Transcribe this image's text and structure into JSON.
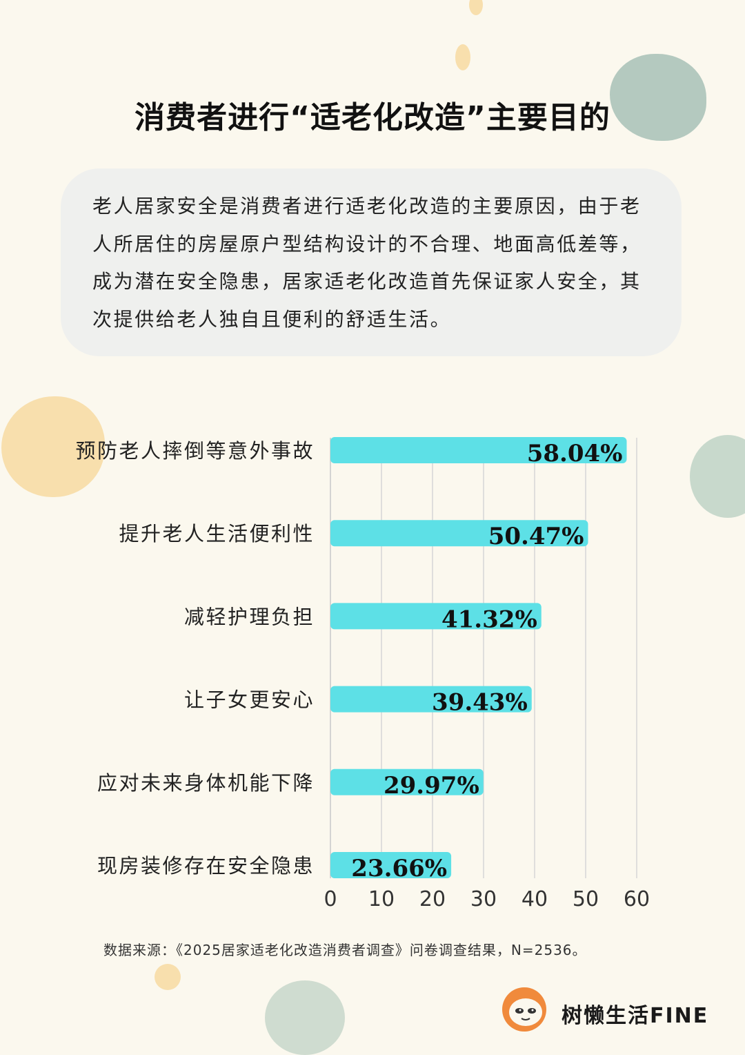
{
  "title": "消费者进行“适老化改造”主要目的",
  "summary": "老人居家安全是消费者进行适老化改造的主要原因，由于老人所居住的房屋原户型结构设计的不合理、地面高低差等，成为潜在安全隐患，居家适老化改造首先保证家人安全，其次提供给老人独自且便利的舒适生活。",
  "colors": {
    "bar": "#5de0e6",
    "background": "#fbf8ee",
    "blob_green": "#b4c9bf",
    "blob_orange": "#f8dfad",
    "logo_orange": "#f08a3c"
  },
  "chart_data": {
    "type": "bar",
    "orientation": "horizontal",
    "categories": [
      "预防老人摔倒等意外事故",
      "提升老人生活便利性",
      "减轻护理负担",
      "让子女更安心",
      "应对未来身体机能下降",
      "现房装修存在安全隐患"
    ],
    "values": [
      58.04,
      50.47,
      41.32,
      39.43,
      29.97,
      23.66
    ],
    "value_labels": [
      "58.04%",
      "50.47%",
      "41.32%",
      "39.43%",
      "29.97%",
      "23.66%"
    ],
    "x_ticks": [
      "0",
      "10",
      "20",
      "30",
      "40",
      "50",
      "60"
    ],
    "xlim": [
      0,
      60
    ],
    "grid": true
  },
  "source": "数据来源：《2025居家适老化改造消费者调查》问卷调查结果，N=2536。",
  "brand": {
    "name": "树懒生活FINE",
    "icon": "sloth-icon"
  }
}
